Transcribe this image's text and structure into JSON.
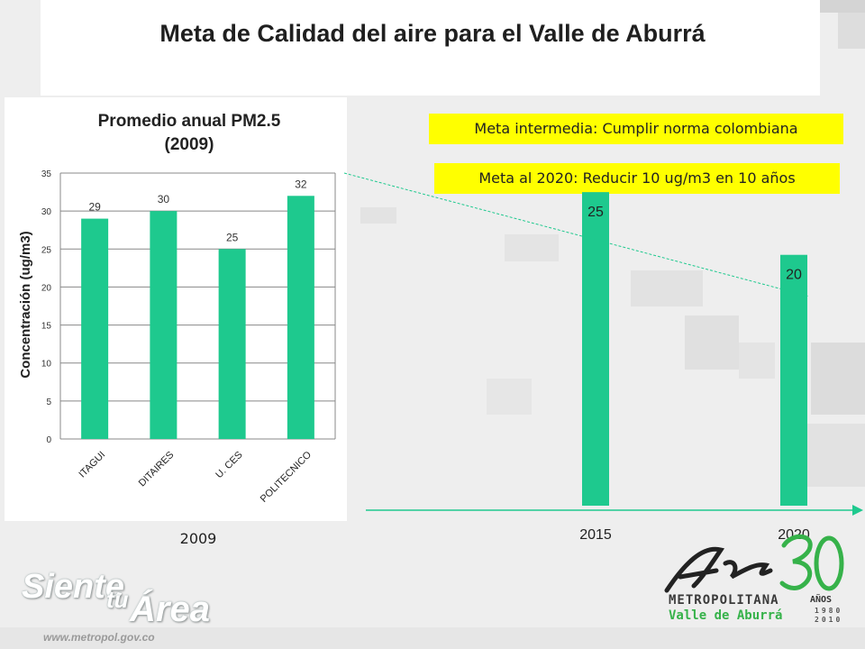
{
  "slide": {
    "title": "Meta de Calidad del aire para el Valle de Aburrá",
    "goal_intermediate": "Meta intermedia: Cumplir norma colombiana",
    "goal_2020": "Meta al 2020: Reducir 10 ug/m3  en 10 años",
    "footer_url": "www.metropol.gov.co",
    "slogan_word1": "Siente",
    "slogan_word2": "tu",
    "slogan_word3": "Área",
    "logo_metropolitana": "METROPOLITANA",
    "logo_valle": "Valle de Aburrá",
    "logo_anos": "AÑOS",
    "logo_years": "1980 2010"
  },
  "colors": {
    "bar": "#1ec98e",
    "goal_box": "#ffff00",
    "arrow": "#1ec98e"
  },
  "chart_data": [
    {
      "type": "bar",
      "title": "Promedio anual PM2.5 (2009)",
      "title_line1": "Promedio anual PM2.5",
      "title_line2": "(2009)",
      "categories": [
        "ITAGUI",
        "DITAIRES",
        "U. CES",
        "POLITECNICO"
      ],
      "values": [
        29,
        30,
        25,
        32
      ],
      "value_labels": [
        "29",
        "30",
        "25",
        "32"
      ],
      "xlabel": "2009",
      "ylabel": "Concentración (ug/m3)",
      "ylim": [
        0,
        35
      ],
      "yticks": [
        "0",
        "5",
        "10",
        "15",
        "20",
        "25",
        "30",
        "35"
      ],
      "grid": true
    },
    {
      "type": "bar",
      "categories": [
        "2015",
        "2020"
      ],
      "values": [
        25,
        20
      ],
      "value_labels": [
        "25",
        "20"
      ],
      "ylim": [
        0,
        35
      ],
      "trend_arrow": "from 2009 maximum down to 2020 target"
    }
  ]
}
